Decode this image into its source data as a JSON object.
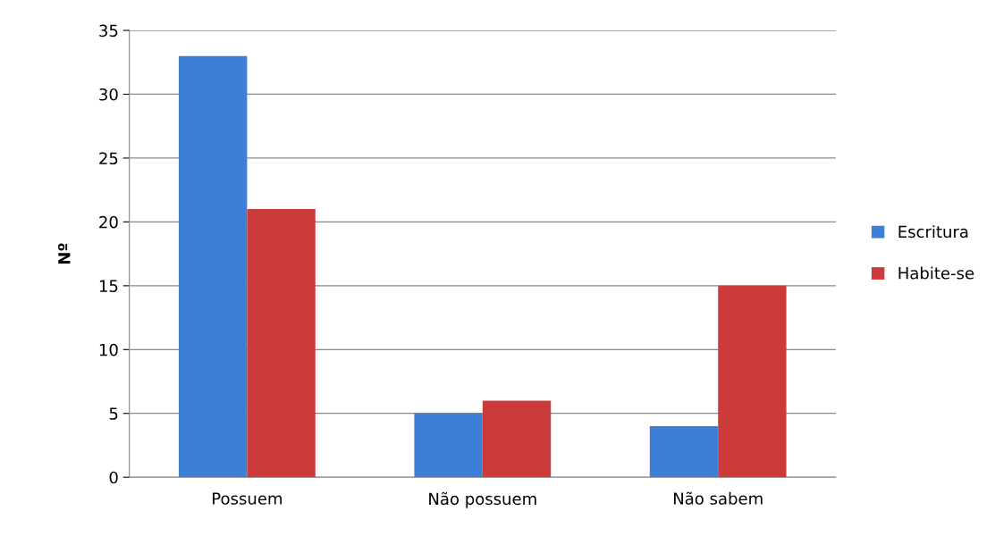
{
  "chart_data": {
    "type": "bar",
    "ylabel": "Nº",
    "categories": [
      "Possuem",
      "Não possuem",
      "Não sabem"
    ],
    "series": [
      {
        "name": "Escritura",
        "color": "#3d7fd6",
        "values": [
          33,
          5,
          4
        ]
      },
      {
        "name": "Habite-se",
        "color": "#cc3b3b",
        "values": [
          21,
          6,
          15
        ]
      }
    ],
    "ylim": [
      0,
      35
    ],
    "yticks": [
      0,
      5,
      10,
      15,
      20,
      25,
      30,
      35
    ],
    "grid": "y",
    "legend": "right"
  }
}
